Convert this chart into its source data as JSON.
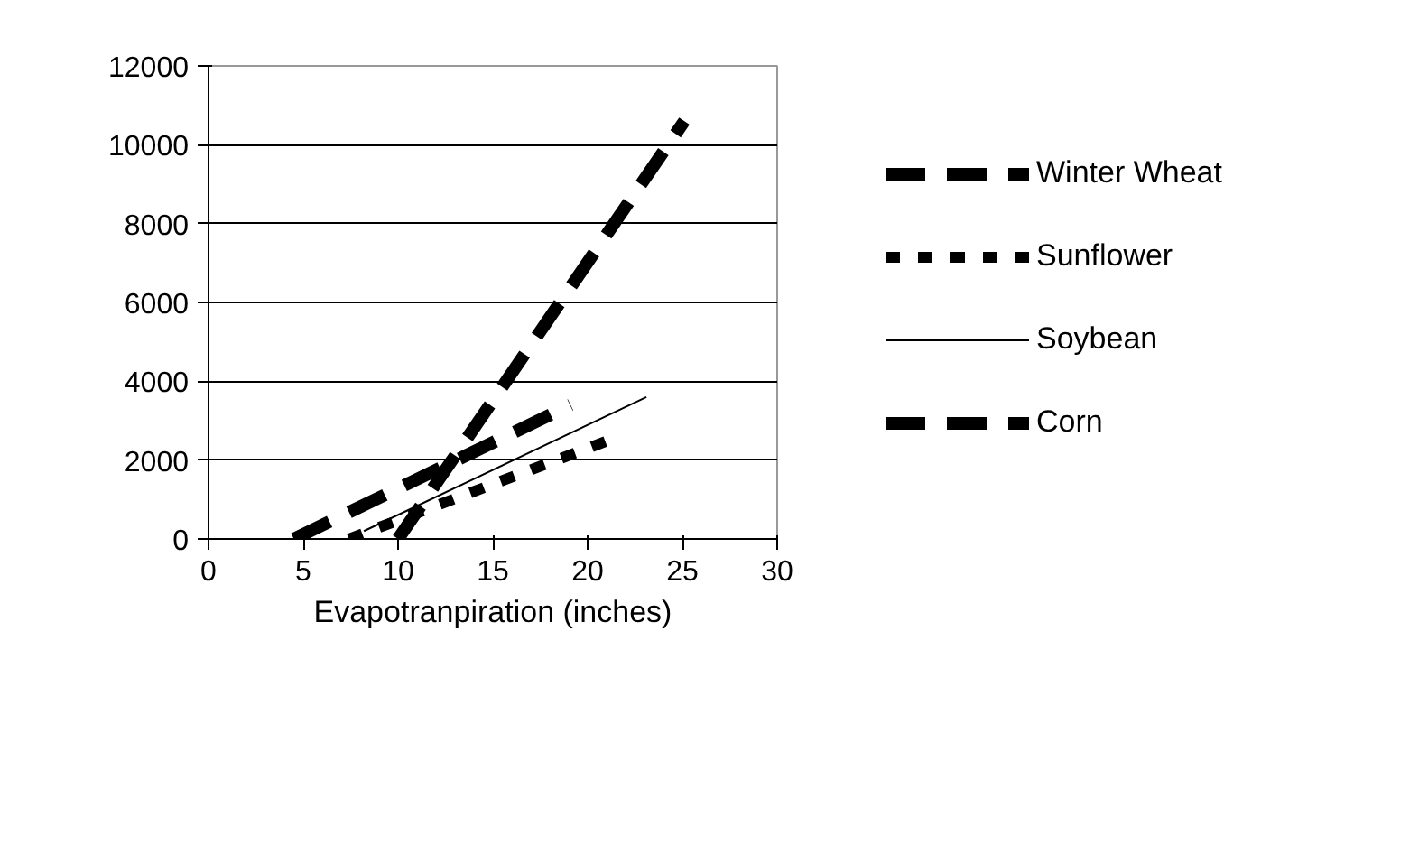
{
  "chart_data": {
    "type": "line",
    "xlabel": "Evapotranpiration (inches)",
    "xlim": [
      0,
      30
    ],
    "xticks": [
      0,
      5,
      10,
      15,
      20,
      25,
      30
    ],
    "ylim": [
      0,
      12000
    ],
    "yticks": [
      0,
      2000,
      4000,
      6000,
      8000,
      10000,
      12000
    ],
    "grid": "y",
    "legend": "right",
    "series": [
      {
        "name": "Winter Wheat",
        "color": "#000000",
        "x": [
          4.5,
          19.1
        ],
        "values": [
          0,
          3400
        ],
        "line_style": "dashed"
      },
      {
        "name": "Sunflower",
        "color": "#000000",
        "x": [
          7.4,
          21.1
        ],
        "values": [
          0,
          2500
        ],
        "line_style": "dotted"
      },
      {
        "name": "Soybean",
        "color": "#000000",
        "x": [
          8.2,
          23.1
        ],
        "values": [
          200,
          3600
        ],
        "line_style": "solid"
      },
      {
        "name": "Corn",
        "color": "#000000",
        "x": [
          10,
          25.1
        ],
        "values": [
          0,
          10600
        ],
        "line_style": "dashed"
      }
    ]
  }
}
